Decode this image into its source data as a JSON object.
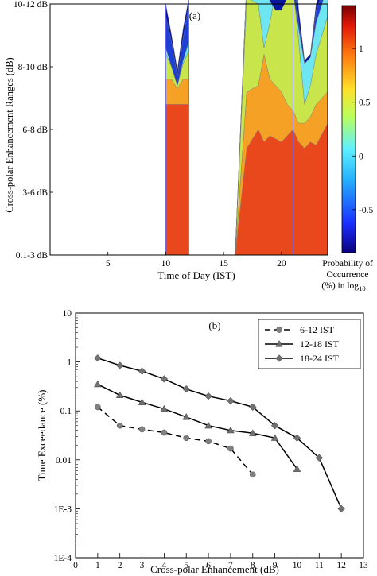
{
  "chart_data": [
    {
      "type": "heatmap",
      "panel_label": "(a)",
      "xlabel": "Time of Day (IST)",
      "ylabel": "Cross-polar Enhancement Ranges (dB)",
      "xlim": [
        0,
        24
      ],
      "x_ticks": [
        "5",
        "10",
        "15",
        "20"
      ],
      "x_tick_values": [
        5,
        10,
        15,
        20
      ],
      "y_categories": [
        "0.1-3 dB",
        "3-6 dB",
        "6-8 dB",
        "8-10 dB",
        "10-12 dB"
      ],
      "colorbar": {
        "label_lines": [
          "Probability of",
          "Occurrence",
          "(%) in log"
        ],
        "label_subscript": "10",
        "range": [
          -0.9,
          1.4
        ],
        "ticks": [
          "1",
          "0.5",
          "0",
          "-0.5"
        ],
        "tick_values": [
          1,
          0.5,
          0,
          -0.5
        ]
      },
      "level_colors": [
        "#e8481c",
        "#f4a126",
        "#c8e64b",
        "#6de6f2",
        "#1d3fd6",
        "#07169f"
      ],
      "event_lines": [
        10,
        12,
        21
      ],
      "regions": [
        {
          "x": [
            10,
            10.5,
            11,
            11.5,
            12
          ],
          "boundaries": [
            [
              0,
              0,
              0,
              0,
              0
            ],
            [
              2.4,
              2.4,
              2.4,
              2.4,
              2.4
            ],
            [
              2.8,
              2.8,
              2.65,
              2.8,
              2.8
            ],
            [
              3.2,
              3.0,
              2.7,
              3.05,
              3.25
            ],
            [
              3.3,
              3.0,
              2.7,
              3.1,
              3.4
            ],
            [
              3.8,
              3.4,
              2.85,
              3.45,
              4.0
            ],
            [
              4.0,
              3.5,
              2.95,
              3.6,
              4.1
            ]
          ]
        },
        {
          "x": [
            16,
            17,
            18,
            18.5,
            19,
            19.5,
            20,
            20.5,
            21,
            21.5,
            22,
            22.5,
            23,
            24
          ],
          "boundaries": [
            [
              0,
              0,
              0,
              0,
              0,
              0,
              0,
              0,
              0,
              0,
              0,
              0,
              0,
              0
            ],
            [
              0,
              1.7,
              2.0,
              1.8,
              1.9,
              1.85,
              1.8,
              1.9,
              2.0,
              1.8,
              1.7,
              1.8,
              1.75,
              2.1
            ],
            [
              0,
              2.6,
              2.7,
              3.2,
              2.8,
              2.7,
              2.6,
              2.4,
              2.3,
              2.1,
              2.1,
              2.2,
              2.4,
              2.6
            ],
            [
              0,
              4.1,
              4.0,
              3.3,
              3.7,
              4.2,
              4.0,
              4.1,
              4.3,
              3.4,
              2.4,
              2.7,
              3.2,
              3.8
            ],
            [
              0,
              4.35,
              4.35,
              4.1,
              4.2,
              4.0,
              4.0,
              4.1,
              4.2,
              3.6,
              3.05,
              3.15,
              3.7,
              4.3
            ],
            [
              0,
              4.35,
              4.35,
              4.3,
              4.05,
              3.9,
              3.9,
              4.1,
              4.6,
              3.7,
              3.05,
              3.15,
              3.9,
              4.4
            ],
            [
              0,
              4.35,
              4.35,
              4.35,
              4.3,
              4.1,
              4.1,
              4.6,
              5.0,
              3.9,
              3.1,
              3.2,
              4.0,
              4.5
            ]
          ]
        }
      ]
    },
    {
      "type": "line",
      "panel_label": "(b)",
      "xlabel": "Cross-polar Enhancement (dB)",
      "ylabel": "Time Exceedance (%)",
      "xlim": [
        0,
        13
      ],
      "x_ticks": [
        0,
        1,
        2,
        3,
        4,
        5,
        6,
        7,
        8,
        9,
        10,
        11,
        12,
        13
      ],
      "ylog": true,
      "ylim": [
        0.0001,
        10
      ],
      "y_tick_labels": [
        "10",
        "1",
        "0.1",
        "0.01",
        "1E-3",
        "1E-4"
      ],
      "y_tick_values": [
        10,
        1,
        0.1,
        0.01,
        0.001,
        0.0001
      ],
      "legend_position": "top-right",
      "series": [
        {
          "name": "6-12 IST",
          "marker": "circle",
          "line": "dashed",
          "color": "#808080",
          "x": [
            1,
            2,
            3,
            4,
            5,
            6,
            7,
            8
          ],
          "values": [
            0.12,
            0.05,
            0.042,
            0.036,
            0.028,
            0.024,
            0.017,
            0.005
          ]
        },
        {
          "name": "12-18 IST",
          "marker": "triangle",
          "line": "solid",
          "color": "#707070",
          "x": [
            1,
            2,
            3,
            4,
            5,
            6,
            7,
            8,
            9,
            10
          ],
          "values": [
            0.35,
            0.21,
            0.15,
            0.11,
            0.075,
            0.05,
            0.04,
            0.035,
            0.028,
            0.0065
          ]
        },
        {
          "name": "18-24 IST",
          "marker": "diamond",
          "line": "solid",
          "color": "#707070",
          "x": [
            1,
            2,
            3,
            4,
            5,
            6,
            7,
            8,
            9,
            10,
            11,
            12
          ],
          "values": [
            1.2,
            0.85,
            0.65,
            0.45,
            0.28,
            0.2,
            0.16,
            0.12,
            0.05,
            0.028,
            0.011,
            0.001
          ]
        }
      ]
    }
  ]
}
